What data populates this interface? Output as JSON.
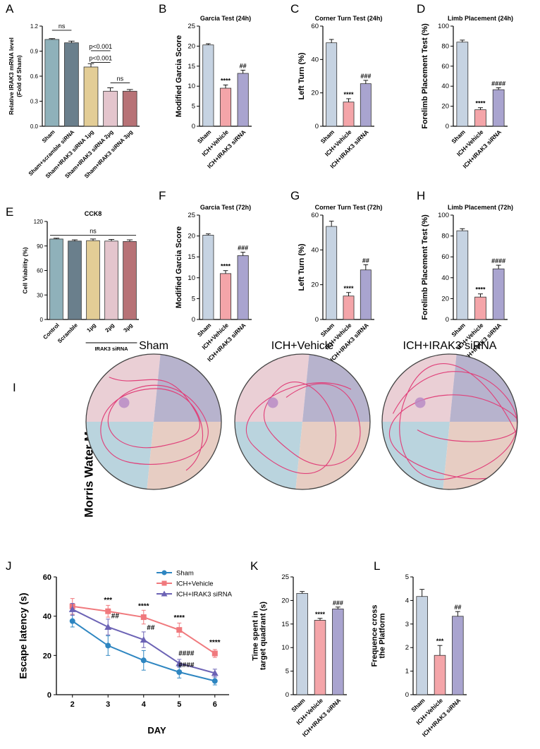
{
  "colors": {
    "sham": "#c6d3e2",
    "vehicle": "#f4a5a9",
    "sirna": "#a9a4cf",
    "lineSham": "#2e86c1",
    "lineVehicle": "#f0797d",
    "lineSirna": "#6c63b5",
    "qTL": "#eacfd5",
    "qTR": "#b7b3cd",
    "qBL": "#bad4de",
    "qBR": "#e7cdc3",
    "path": "#e0417a",
    "platform": "#b98cc5",
    "panelA": [
      "#8fb1ba",
      "#6a7f8c",
      "#e3cd96",
      "#e4c5cd",
      "#b77276"
    ],
    "panelE": [
      "#8fb1ba",
      "#6a7f8c",
      "#e3cd96",
      "#e4c5cd",
      "#b77276"
    ]
  },
  "chart_data": [
    {
      "id": "A",
      "letter": "A",
      "type": "bar",
      "title": "",
      "ylabel": [
        "Relative IRAK3 mRNA level",
        "(Fold of Sham)"
      ],
      "ylim": [
        0,
        1.2
      ],
      "yticks": [
        "0.0",
        "0.3",
        "0.6",
        "0.9",
        "1.2"
      ],
      "categories": [
        "Sham",
        "Sham+scramble siRNA",
        "Sham+IRAK3 siRNA 1μg",
        "Sham+IRAK3 siRNA 2μg",
        "Sham+IRAK3 siRNA 3μg"
      ],
      "values": [
        1.04,
        1.0,
        0.71,
        0.42,
        0.42
      ],
      "errors": [
        0.01,
        0.02,
        0.04,
        0.04,
        0.02
      ],
      "brackets": [
        {
          "from": 0,
          "to": 1,
          "level": 1.15,
          "label": "ns"
        },
        {
          "from": 2,
          "to": 3,
          "level": 0.905,
          "label": "p<0.001"
        },
        {
          "from": 2,
          "to": 3,
          "level": 0.765,
          "label": "p<0.001"
        },
        {
          "from": 3,
          "to": 4,
          "level": 0.52,
          "label": "ns"
        }
      ]
    },
    {
      "id": "B",
      "letter": "B",
      "type": "bar",
      "title": "Garcia Test (24h)",
      "ylabel": [
        "Modified Garcia Score"
      ],
      "ylim": [
        0,
        25
      ],
      "yticks": [
        "0",
        "5",
        "10",
        "15",
        "20",
        "25"
      ],
      "categories": [
        "Sham",
        "ICH+Vehicle",
        "ICH+IRAK3 siRNA"
      ],
      "values": [
        20.3,
        9.5,
        13.2
      ],
      "errors": [
        0.3,
        0.8,
        0.8
      ],
      "marks": [
        "",
        "****",
        "##"
      ]
    },
    {
      "id": "C",
      "letter": "C",
      "type": "bar",
      "title": "Corner Turn Test (24h)",
      "ylabel": [
        "Left Turn (%)"
      ],
      "ylim": [
        0,
        60
      ],
      "yticks": [
        "0",
        "20",
        "40",
        "60"
      ],
      "categories": [
        "Sham",
        "ICH+Vehicle",
        "ICH+IRAK3 siRNA"
      ],
      "values": [
        50.0,
        14.5,
        25.5
      ],
      "errors": [
        2.0,
        2.0,
        2.0
      ],
      "marks": [
        "",
        "****",
        "###"
      ]
    },
    {
      "id": "D",
      "letter": "D",
      "type": "bar",
      "title": "Limb Placement (24h)",
      "ylabel": [
        "Forelimb Placement Test (%)"
      ],
      "ylim": [
        0,
        100
      ],
      "yticks": [
        "0",
        "20",
        "40",
        "60",
        "80",
        "100"
      ],
      "categories": [
        "Sham",
        "ICH+Vehicle",
        "ICH+IRAK3 siRNA"
      ],
      "values": [
        84,
        16.5,
        36.5
      ],
      "errors": [
        2,
        2,
        2
      ],
      "marks": [
        "",
        "****",
        "####"
      ]
    },
    {
      "id": "E",
      "letter": "E",
      "type": "bar",
      "title": "CCK8",
      "ylabel": [
        "Cell Viability (%)"
      ],
      "ylim": [
        0,
        120
      ],
      "yticks": [
        "0",
        "30",
        "60",
        "90",
        "120"
      ],
      "categories": [
        "Control",
        "Scramble",
        "1μg",
        "2μg",
        "3μg"
      ],
      "values": [
        98.5,
        96,
        96.5,
        96,
        95.5
      ],
      "errors": [
        1,
        1.5,
        2,
        2,
        2
      ],
      "group_label": "IRAK3 siRNA",
      "brackets": [
        {
          "from": 0,
          "to": 4,
          "level": 103,
          "label": "ns"
        }
      ]
    },
    {
      "id": "F",
      "letter": "F",
      "type": "bar",
      "title": "Garcia Test (72h)",
      "ylabel": [
        "Modified Garcia Score"
      ],
      "ylim": [
        0,
        25
      ],
      "yticks": [
        "0",
        "5",
        "10",
        "15",
        "20",
        "25"
      ],
      "categories": [
        "Sham",
        "ICH+Vehicle",
        "ICH+IRAK3 siRNA"
      ],
      "values": [
        20.2,
        11.0,
        15.3
      ],
      "errors": [
        0.3,
        0.7,
        0.8
      ],
      "marks": [
        "",
        "****",
        "###"
      ]
    },
    {
      "id": "G",
      "letter": "G",
      "type": "bar",
      "title": "Corner Turn Test (72h)",
      "ylabel": [
        "Left Turn (%)"
      ],
      "ylim": [
        0,
        60
      ],
      "yticks": [
        "0",
        "20",
        "40",
        "60"
      ],
      "categories": [
        "Sham",
        "ICH+Vehicle",
        "ICH+IRAK3 siRNA"
      ],
      "values": [
        53.5,
        13.5,
        28.5
      ],
      "errors": [
        3.0,
        2.0,
        3.0
      ],
      "marks": [
        "",
        "****",
        "##"
      ]
    },
    {
      "id": "H",
      "letter": "H",
      "type": "bar",
      "title": "Limb Placement (72h)",
      "ylabel": [
        "Forelimb Placement Test (%)"
      ],
      "ylim": [
        0,
        100
      ],
      "yticks": [
        "0",
        "20",
        "40",
        "60",
        "80",
        "100"
      ],
      "categories": [
        "Sham",
        "ICH+Vehicle",
        "ICH+IRAK3 siRNA"
      ],
      "values": [
        85,
        21.5,
        48.5
      ],
      "errors": [
        2,
        3,
        3.5
      ],
      "marks": [
        "",
        "****",
        "####"
      ]
    },
    {
      "id": "J",
      "letter": "J",
      "type": "line",
      "title": "",
      "xlabel": "DAY",
      "ylabel": [
        "Escape latency (s)"
      ],
      "ylim": [
        0,
        60
      ],
      "yticks": [
        "0",
        "20",
        "40",
        "60"
      ],
      "x": [
        2,
        3,
        4,
        5,
        6
      ],
      "series": [
        {
          "name": "Sham",
          "values": [
            37.5,
            25,
            17.5,
            11.5,
            7
          ],
          "errors": [
            3,
            5,
            5,
            3,
            2
          ],
          "marker": "circle"
        },
        {
          "name": "ICH+Vehicle",
          "values": [
            45,
            42.5,
            39.5,
            33,
            21
          ],
          "errors": [
            4,
            3,
            3.5,
            3.5,
            2
          ],
          "marker": "square"
        },
        {
          "name": "ICH+IRAK3 siRNA",
          "values": [
            43.5,
            34.5,
            28,
            16,
            11
          ],
          "errors": [
            3,
            4,
            4,
            2,
            2
          ],
          "marker": "triangle"
        }
      ],
      "annotations": [
        {
          "x": 3,
          "y": 47,
          "text": "***"
        },
        {
          "x": 4,
          "y": 44,
          "text": "****"
        },
        {
          "x": 5,
          "y": 38,
          "text": "****"
        },
        {
          "x": 6,
          "y": 25.5,
          "text": "****"
        },
        {
          "x": 3.2,
          "y": 39,
          "text": "##"
        },
        {
          "x": 4.2,
          "y": 33,
          "text": "##"
        },
        {
          "x": 5.2,
          "y": 20,
          "text": "####"
        },
        {
          "x": 5.2,
          "y": 14,
          "text": "####"
        }
      ],
      "legend_position": "top-right"
    },
    {
      "id": "K",
      "letter": "K",
      "type": "bar",
      "title": "",
      "ylabel": [
        "Time spent in",
        "target quadrant (s)"
      ],
      "ylim": [
        0,
        25
      ],
      "yticks": [
        "0",
        "5",
        "10",
        "15",
        "20",
        "25"
      ],
      "categories": [
        "Sham",
        "ICH+Vehicle",
        "ICH+IRAK3 siRNA"
      ],
      "values": [
        21.5,
        15.8,
        18.2
      ],
      "errors": [
        0.4,
        0.4,
        0.4
      ],
      "marks": [
        "",
        "****",
        "###"
      ]
    },
    {
      "id": "L",
      "letter": "L",
      "type": "bar",
      "title": "",
      "ylabel": [
        "Frequence cross",
        "the Platform"
      ],
      "ylim": [
        0,
        5
      ],
      "yticks": [
        "0",
        "1",
        "2",
        "3",
        "4",
        "5"
      ],
      "categories": [
        "Sham",
        "ICH+Vehicle",
        "ICH+IRAK3 siRNA"
      ],
      "values": [
        4.17,
        1.67,
        3.33
      ],
      "errors": [
        0.3,
        0.42,
        0.2
      ],
      "marks": [
        "",
        "***",
        "##"
      ]
    }
  ],
  "maze": {
    "letter": "I",
    "side_label": "Morris Water Maze",
    "groups": [
      "Sham",
      "ICH+Vehicle",
      "ICH+IRAK3 siRNA"
    ]
  }
}
